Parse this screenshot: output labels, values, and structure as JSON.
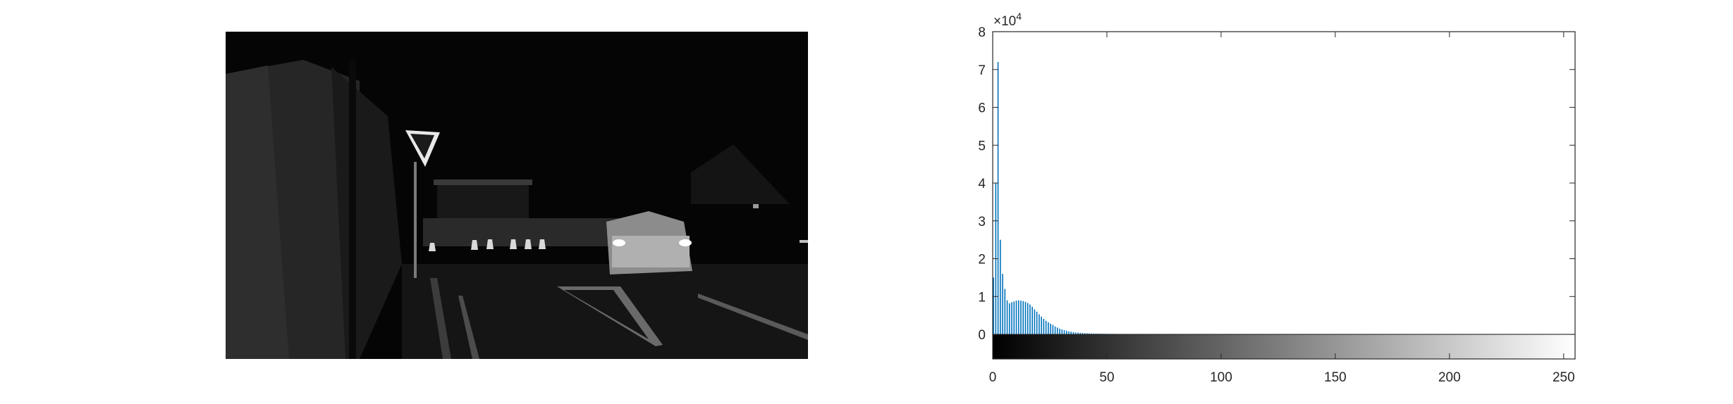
{
  "figure": {
    "image_panel": {
      "name": "grayscale night street photo",
      "description_icon": "photo-image"
    }
  },
  "chart_data": {
    "type": "bar",
    "xlim": [
      0,
      255
    ],
    "ylim": [
      -6500,
      80000
    ],
    "y_exponent_label": "×10",
    "y_exponent_power": "4",
    "x_ticks": [
      0,
      50,
      100,
      150,
      200,
      250
    ],
    "x_tick_labels": [
      "0",
      "50",
      "100",
      "150",
      "200",
      "250"
    ],
    "y_ticks": [
      0,
      10000,
      20000,
      30000,
      40000,
      50000,
      60000,
      70000,
      80000
    ],
    "y_tick_labels": [
      "0",
      "1",
      "2",
      "3",
      "4",
      "5",
      "6",
      "7",
      "8"
    ],
    "grid": false,
    "colorbar": "gray 0–255 below x axis",
    "bar_color": "#0072bd",
    "bins": [
      0,
      1,
      2,
      3,
      4,
      5,
      6,
      7,
      8,
      9,
      10,
      11,
      12,
      13,
      14,
      15,
      16,
      17,
      18,
      19,
      20,
      21,
      22,
      23,
      24,
      25,
      26,
      27,
      28,
      29,
      30,
      31,
      32,
      33,
      34,
      35,
      36,
      37,
      38,
      39,
      40,
      41,
      42,
      43,
      44,
      45,
      46,
      47,
      48,
      49,
      50,
      51,
      52,
      53,
      54,
      55,
      56,
      57,
      58,
      59,
      60,
      61,
      62,
      63,
      64,
      65,
      66,
      67,
      68,
      69,
      70,
      71,
      72,
      73,
      74,
      75,
      76,
      77,
      78,
      79,
      80
    ],
    "values": [
      15000,
      40000,
      72000,
      25000,
      16000,
      12000,
      9000,
      8200,
      8500,
      8700,
      8900,
      9000,
      8900,
      8800,
      8600,
      8300,
      7900,
      7300,
      6600,
      6000,
      5300,
      4700,
      4100,
      3600,
      3200,
      2800,
      2500,
      2100,
      1800,
      1500,
      1300,
      1100,
      950,
      800,
      700,
      600,
      500,
      450,
      400,
      360,
      320,
      290,
      260,
      240,
      220,
      200,
      190,
      180,
      170,
      160,
      150,
      140,
      130,
      125,
      120,
      115,
      110,
      105,
      100,
      95,
      90,
      85,
      80,
      75,
      70,
      68,
      66,
      64,
      62,
      60,
      58,
      56,
      54,
      52,
      50,
      48,
      46,
      44,
      42,
      40,
      38
    ]
  }
}
